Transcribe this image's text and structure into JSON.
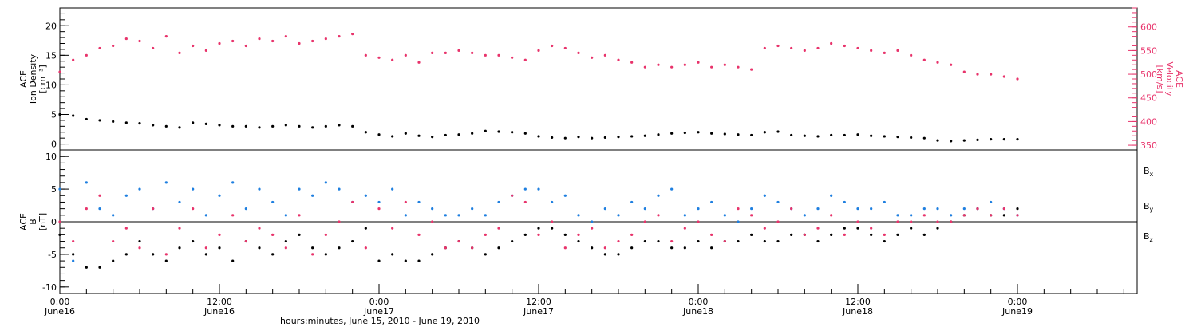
{
  "colors": {
    "black": "#000000",
    "pink": "#e8336b",
    "blue": "#1e7fe0"
  },
  "chart_data": [
    {
      "type": "scatter",
      "panel": "plasma",
      "ylabel_lines": [
        "ACE",
        "Ion Density",
        "[cm⁻³]"
      ],
      "y2label_lines": [
        "ACE",
        "Velocity",
        "[km/s]"
      ],
      "ylim": [
        -1,
        23
      ],
      "yticks": [
        0,
        5,
        10,
        15,
        20
      ],
      "y2lim": [
        340,
        640
      ],
      "y2ticks": [
        350,
        400,
        450,
        500,
        550,
        600
      ],
      "grid": false,
      "series": [
        {
          "name": "Ion Density",
          "axis": "left",
          "color": "black",
          "x": [
            0,
            1,
            2,
            3,
            4,
            5,
            6,
            7,
            8,
            9,
            10,
            11,
            12,
            13,
            14,
            15,
            16,
            17,
            18,
            19,
            20,
            21,
            22,
            23,
            24,
            25,
            26,
            27,
            28,
            29,
            30,
            31,
            32,
            33,
            34,
            35,
            36,
            37,
            38,
            39,
            40,
            41,
            42,
            43,
            44,
            45,
            46,
            47,
            48,
            49,
            50,
            51,
            52,
            53,
            54,
            55,
            56,
            57,
            58,
            59,
            60,
            61,
            62,
            63,
            64,
            65,
            66,
            67,
            68,
            69,
            70,
            71,
            72
          ],
          "y": [
            5.0,
            4.8,
            4.2,
            4.0,
            3.8,
            3.6,
            3.5,
            3.2,
            3.0,
            2.8,
            3.6,
            3.4,
            3.2,
            3.0,
            3.0,
            2.8,
            3.0,
            3.2,
            3.0,
            2.8,
            3.0,
            3.2,
            3.0,
            2.0,
            1.6,
            1.3,
            1.8,
            1.4,
            1.2,
            1.5,
            1.6,
            1.8,
            2.2,
            2.1,
            2.0,
            1.8,
            1.3,
            1.1,
            1.0,
            1.2,
            1.0,
            1.1,
            1.2,
            1.3,
            1.4,
            1.6,
            1.8,
            1.9,
            2.0,
            1.8,
            1.7,
            1.6,
            1.5,
            2.0,
            2.1,
            1.5,
            1.4,
            1.3,
            1.5,
            1.5,
            1.6,
            1.4,
            1.3,
            1.2,
            1.1,
            1.0,
            0.6,
            0.5,
            0.6,
            0.7,
            0.8,
            0.8,
            0.8
          ]
        },
        {
          "name": "Velocity",
          "axis": "right",
          "color": "pink",
          "x": [
            0,
            1,
            2,
            3,
            4,
            5,
            6,
            7,
            8,
            9,
            10,
            11,
            12,
            13,
            14,
            15,
            16,
            17,
            18,
            19,
            20,
            21,
            22,
            23,
            24,
            25,
            26,
            27,
            28,
            29,
            30,
            31,
            32,
            33,
            34,
            35,
            36,
            37,
            38,
            39,
            40,
            41,
            42,
            43,
            44,
            45,
            46,
            47,
            48,
            49,
            50,
            51,
            52,
            53,
            54,
            55,
            56,
            57,
            58,
            59,
            60,
            61,
            62,
            63,
            64,
            65,
            66,
            67,
            68,
            69,
            70,
            71,
            72
          ],
          "y": [
            505,
            530,
            540,
            555,
            560,
            575,
            570,
            555,
            580,
            545,
            560,
            550,
            565,
            570,
            560,
            575,
            570,
            580,
            565,
            570,
            575,
            580,
            585,
            540,
            535,
            530,
            540,
            525,
            545,
            545,
            550,
            545,
            540,
            540,
            535,
            530,
            550,
            560,
            555,
            545,
            535,
            540,
            530,
            525,
            515,
            520,
            515,
            520,
            525,
            515,
            520,
            515,
            510,
            555,
            560,
            555,
            550,
            555,
            565,
            560,
            555,
            550,
            545,
            550,
            540,
            530,
            525,
            520,
            505,
            500,
            500,
            495,
            490
          ]
        }
      ]
    },
    {
      "type": "scatter",
      "panel": "magnetic",
      "ylabel_lines": [
        "ACE",
        "B",
        "[nT]"
      ],
      "ylim": [
        -11,
        11
      ],
      "yticks": [
        -10,
        -5,
        0,
        5,
        10
      ],
      "xticks": [
        {
          "pos": 0,
          "time": "0:00",
          "date": "June16"
        },
        {
          "pos": 12,
          "time": "12:00",
          "date": "June16"
        },
        {
          "pos": 24,
          "time": "0:00",
          "date": "June17"
        },
        {
          "pos": 36,
          "time": "12:00",
          "date": "June17"
        },
        {
          "pos": 48,
          "time": "0:00",
          "date": "June18"
        },
        {
          "pos": 60,
          "time": "12:00",
          "date": "June18"
        },
        {
          "pos": 72,
          "time": "0:00",
          "date": "June19"
        }
      ],
      "xlim": [
        0,
        81
      ],
      "xlabel": "hours:minutes, June 15, 2010 - June 19, 2010",
      "zero_line": true,
      "grid": false,
      "legend": [
        {
          "label": "B",
          "sub": "x",
          "color": "black"
        },
        {
          "label": "B",
          "sub": "y",
          "color": "blue"
        },
        {
          "label": "B",
          "sub": "z",
          "color": "pink"
        }
      ],
      "legend_position": "right",
      "series": [
        {
          "name": "Bx",
          "color": "black",
          "x": [
            0,
            1,
            2,
            3,
            4,
            5,
            6,
            7,
            8,
            9,
            10,
            11,
            12,
            13,
            14,
            15,
            16,
            17,
            18,
            19,
            20,
            21,
            22,
            23,
            24,
            25,
            26,
            27,
            28,
            29,
            30,
            31,
            32,
            33,
            34,
            35,
            36,
            37,
            38,
            39,
            40,
            41,
            42,
            43,
            44,
            45,
            46,
            47,
            48,
            49,
            50,
            51,
            52,
            53,
            54,
            55,
            56,
            57,
            58,
            59,
            60,
            61,
            62,
            63,
            64,
            65,
            66,
            67,
            68,
            69,
            70,
            71,
            72
          ],
          "y": [
            -2,
            -5,
            -7,
            -7,
            -6,
            -5,
            -3,
            -5,
            -6,
            -4,
            -3,
            -5,
            -4,
            -6,
            -3,
            -4,
            -5,
            -3,
            -2,
            -4,
            -5,
            -4,
            -3,
            -1,
            -6,
            -5,
            -6,
            -6,
            -5,
            -4,
            -3,
            -4,
            -5,
            -4,
            -3,
            -2,
            -1,
            -1,
            -2,
            -3,
            -4,
            -5,
            -5,
            -4,
            -3,
            -3,
            -4,
            -4,
            -3,
            -4,
            -3,
            -3,
            -2,
            -3,
            -3,
            -2,
            -2,
            -3,
            -2,
            -1,
            -1,
            -2,
            -3,
            -2,
            -1,
            -2,
            -1,
            0,
            1,
            2,
            1,
            1,
            2
          ]
        },
        {
          "name": "By",
          "color": "blue",
          "x": [
            0,
            1,
            2,
            3,
            4,
            5,
            6,
            7,
            8,
            9,
            10,
            11,
            12,
            13,
            14,
            15,
            16,
            17,
            18,
            19,
            20,
            21,
            22,
            23,
            24,
            25,
            26,
            27,
            28,
            29,
            30,
            31,
            32,
            33,
            34,
            35,
            36,
            37,
            38,
            39,
            40,
            41,
            42,
            43,
            44,
            45,
            46,
            47,
            48,
            49,
            50,
            51,
            52,
            53,
            54,
            55,
            56,
            57,
            58,
            59,
            60,
            61,
            62,
            63,
            64,
            65,
            66,
            67,
            68,
            69,
            70,
            71,
            72
          ],
          "y": [
            5,
            -6,
            6,
            2,
            1,
            4,
            5,
            2,
            6,
            3,
            5,
            1,
            4,
            6,
            2,
            5,
            3,
            1,
            5,
            4,
            6,
            5,
            3,
            4,
            3,
            5,
            1,
            3,
            2,
            1,
            1,
            2,
            1,
            3,
            4,
            5,
            5,
            3,
            4,
            1,
            0,
            2,
            1,
            3,
            2,
            4,
            5,
            1,
            2,
            3,
            1,
            0,
            2,
            4,
            3,
            2,
            1,
            2,
            4,
            3,
            2,
            2,
            3,
            1,
            1,
            2,
            2,
            1,
            2,
            2,
            3,
            2,
            1
          ]
        },
        {
          "name": "Bz",
          "color": "pink",
          "x": [
            0,
            1,
            2,
            3,
            4,
            5,
            6,
            7,
            8,
            9,
            10,
            11,
            12,
            13,
            14,
            15,
            16,
            17,
            18,
            19,
            20,
            21,
            22,
            23,
            24,
            25,
            26,
            27,
            28,
            29,
            30,
            31,
            32,
            33,
            34,
            35,
            36,
            37,
            38,
            39,
            40,
            41,
            42,
            43,
            44,
            45,
            46,
            47,
            48,
            49,
            50,
            51,
            52,
            53,
            54,
            55,
            56,
            57,
            58,
            59,
            60,
            61,
            62,
            63,
            64,
            65,
            66,
            67,
            68,
            69,
            70,
            71,
            72
          ],
          "y": [
            0,
            -3,
            2,
            4,
            -3,
            -1,
            -4,
            2,
            -5,
            -1,
            2,
            -4,
            -2,
            1,
            -3,
            -1,
            -2,
            -4,
            1,
            -5,
            -2,
            0,
            3,
            -4,
            2,
            -1,
            3,
            -2,
            0,
            -4,
            -3,
            -4,
            -2,
            -1,
            4,
            3,
            -2,
            0,
            -4,
            -2,
            -1,
            -4,
            -3,
            -2,
            0,
            1,
            -3,
            -1,
            0,
            -2,
            -3,
            2,
            1,
            -1,
            0,
            2,
            -2,
            -1,
            1,
            -2,
            0,
            -1,
            -2,
            0,
            0,
            1,
            0,
            0,
            1,
            2,
            1,
            2,
            1
          ]
        }
      ]
    }
  ]
}
